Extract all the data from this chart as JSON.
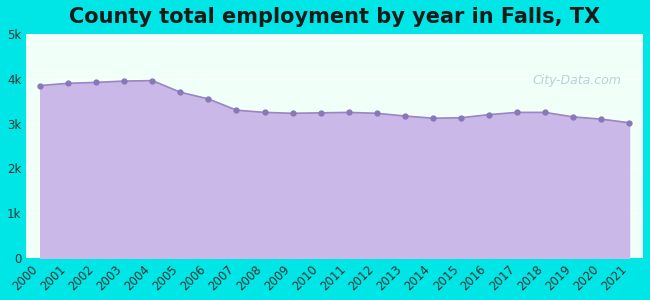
{
  "title": "County total employment by year in Falls, TX",
  "years": [
    2000,
    2001,
    2002,
    2003,
    2004,
    2005,
    2006,
    2007,
    2008,
    2009,
    2010,
    2011,
    2012,
    2013,
    2014,
    2015,
    2016,
    2017,
    2018,
    2019,
    2020,
    2021
  ],
  "values": [
    3850,
    3900,
    3920,
    3950,
    3960,
    3700,
    3550,
    3300,
    3250,
    3230,
    3240,
    3250,
    3230,
    3170,
    3120,
    3130,
    3200,
    3250,
    3250,
    3150,
    3100,
    3020
  ],
  "ylim": [
    0,
    5000
  ],
  "yticks": [
    0,
    1000,
    2000,
    3000,
    4000,
    5000
  ],
  "ytick_labels": [
    "0",
    "1k",
    "2k",
    "3k",
    "4k",
    "5k"
  ],
  "fill_color": "#c9b8e8",
  "line_color": "#9b85c4",
  "marker_color": "#8878b8",
  "bg_color": "#e0faf8",
  "plot_bg_top": "#f0fff8",
  "plot_bg_bottom": "#e8f0ff",
  "outer_bg": "#00e5e5",
  "title_fontsize": 15,
  "tick_fontsize": 8.5
}
